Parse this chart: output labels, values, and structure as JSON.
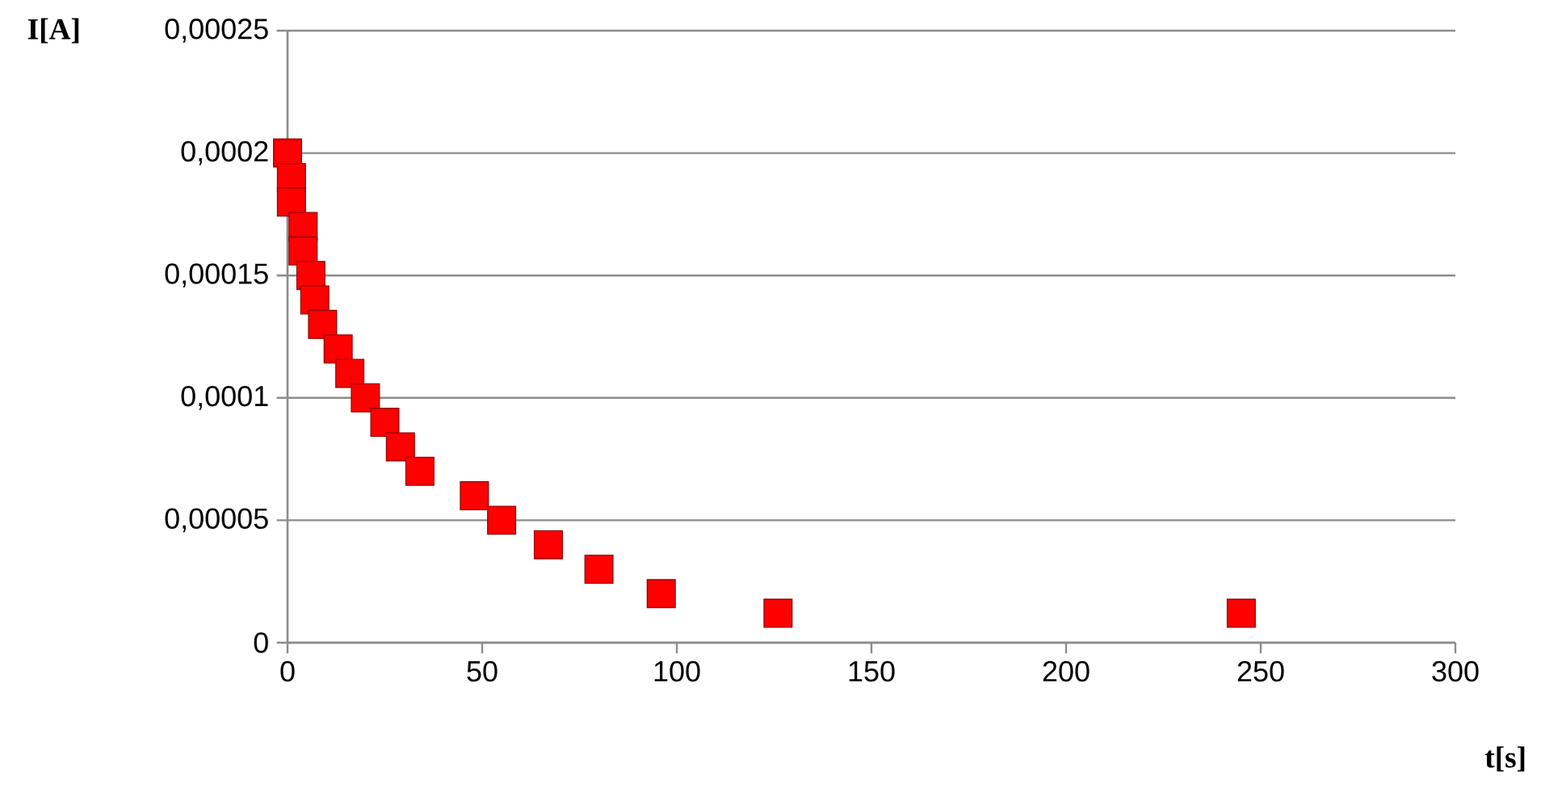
{
  "chart_data": {
    "type": "scatter",
    "xlabel": "t[s]",
    "ylabel": "I[A]",
    "x": [
      0,
      1,
      1,
      4,
      4,
      6,
      7,
      9,
      13,
      16,
      20,
      25,
      29,
      34,
      48,
      55,
      67,
      80,
      96,
      126,
      245
    ],
    "values": [
      0.0002,
      0.00019,
      0.00018,
      0.00017,
      0.00016,
      0.00015,
      0.00014,
      0.00013,
      0.00012,
      0.00011,
      0.0001,
      9e-05,
      8e-05,
      7e-05,
      6e-05,
      5e-05,
      4e-05,
      3e-05,
      2e-05,
      1.2e-05,
      1.2e-05
    ],
    "color": "#ff0000",
    "marker": "square",
    "grid": "y",
    "xlim": [
      0,
      300
    ],
    "xticks": [
      0,
      50,
      100,
      150,
      200,
      250,
      300
    ],
    "ylim": [
      0,
      0.00025
    ],
    "yticks": [
      {
        "value": 0,
        "label": "0"
      },
      {
        "value": 5e-05,
        "label": "0,00005"
      },
      {
        "value": 0.0001,
        "label": "0,0001"
      },
      {
        "value": 0.00015,
        "label": "0,00015"
      },
      {
        "value": 0.0002,
        "label": "0,0002"
      },
      {
        "value": 0.00025,
        "label": "0,00025"
      }
    ]
  }
}
